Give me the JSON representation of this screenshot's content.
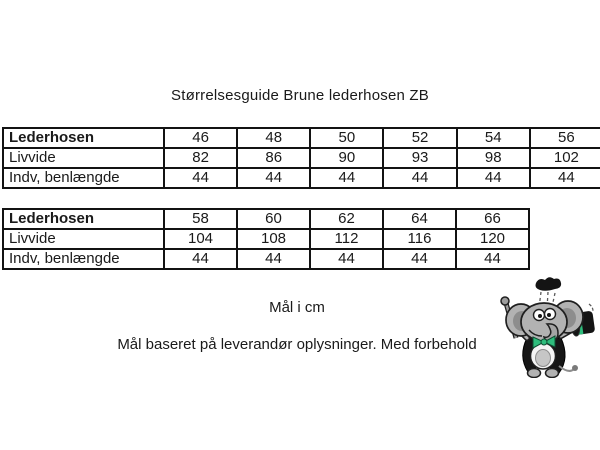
{
  "title": "Størrelsesguide Brune lederhosen ZB",
  "tables": [
    {
      "name": "size-table-upper",
      "rows": [
        {
          "label": "Lederhosen",
          "bold": true,
          "values": [
            "46",
            "48",
            "50",
            "52",
            "54",
            "56"
          ]
        },
        {
          "label": "Livvide",
          "bold": false,
          "values": [
            "82",
            "86",
            "90",
            "93",
            "98",
            "102"
          ]
        },
        {
          "label": "Indv, benlængde",
          "bold": false,
          "values": [
            "44",
            "44",
            "44",
            "44",
            "44",
            "44"
          ]
        }
      ]
    },
    {
      "name": "size-table-lower",
      "rows": [
        {
          "label": "Lederhosen",
          "bold": true,
          "values": [
            "58",
            "60",
            "62",
            "64",
            "66"
          ]
        },
        {
          "label": "Livvide",
          "bold": false,
          "values": [
            "104",
            "108",
            "112",
            "116",
            "120"
          ]
        },
        {
          "label": "Indv, benlængde",
          "bold": false,
          "values": [
            "44",
            "44",
            "44",
            "44",
            "44"
          ]
        }
      ]
    }
  ],
  "notes": {
    "units": "Mål i cm",
    "disclaimer": "Mål baseret på leverandør oplysninger. Med forbehold"
  },
  "mascot": {
    "description": "cartoon elephant with tailcoat, green bow tie, cane and top hat",
    "colors": {
      "body_gray": "#b2b2b2",
      "dark_gray": "#8d8d8d",
      "outline": "#1f1f1f",
      "accent_green": "#2ebd7c",
      "coat_black": "#161616"
    }
  },
  "page": {
    "background": "#ffffff",
    "border_color": "#131313",
    "text_color": "#1a1a1a"
  }
}
